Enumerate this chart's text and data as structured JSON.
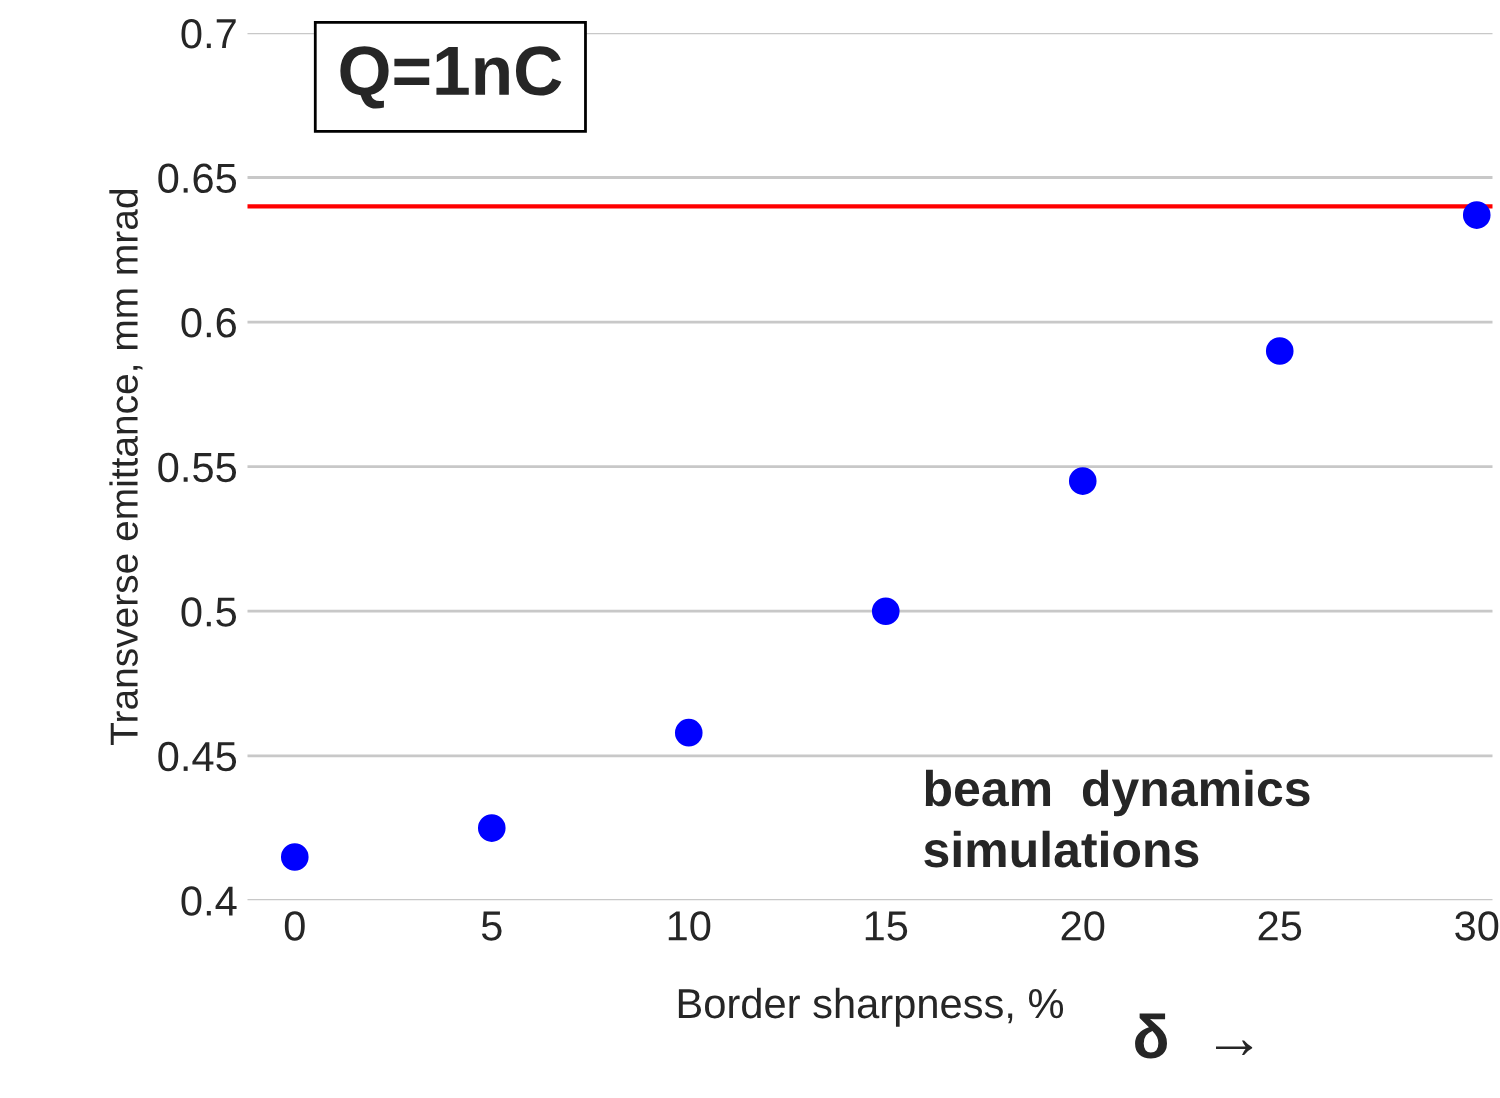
{
  "chart_data": {
    "type": "scatter",
    "xlabel": "Border sharpness, %",
    "ylabel": "Transverse emittance, mm mrad",
    "x": [
      0,
      5,
      10,
      15,
      20,
      25,
      30
    ],
    "series": [
      {
        "color": "#0000ff",
        "values": [
          0.415,
          0.425,
          0.458,
          0.5,
          0.545,
          0.59,
          0.637
        ]
      }
    ],
    "xlim": [
      -1.2,
      30.4
    ],
    "xticks": [
      0,
      5,
      10,
      15,
      20,
      25,
      30
    ],
    "ylim": [
      0.4,
      0.7
    ],
    "yticks": [
      0.4,
      0.45,
      0.5,
      0.55,
      0.6,
      0.65,
      0.7
    ],
    "grid": "y",
    "marker": "circle",
    "ref_lines": [
      {
        "axis": "y",
        "value": 0.64,
        "color": "#ff0000"
      }
    ],
    "annotations": [
      "Q=1nC",
      "beam  dynamics\nsimulations",
      "δ  →"
    ]
  }
}
